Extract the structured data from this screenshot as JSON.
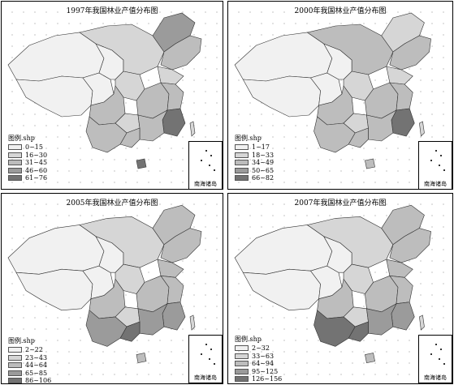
{
  "colors": {
    "c1": "#f1f1f1",
    "c2": "#d6d6d6",
    "c3": "#bdbdbd",
    "c4": "#9b9b9b",
    "c5": "#737373"
  },
  "legend_title": "图例.shp",
  "inset_caption": "南海诸岛",
  "panels": [
    {
      "title": "1997年我国林业产值分布图",
      "legend": [
        "0~15",
        "16~30",
        "31~45",
        "46~60",
        "61~76"
      ],
      "fills": {
        "ne": 3,
        "neh": 4,
        "nw": 1,
        "tibet": 1,
        "qinghai": 1,
        "gansu": 1,
        "nchina": 2,
        "shaanxi": 2,
        "sichuan": 3,
        "central": 3,
        "east": 3,
        "fujian": 5,
        "south": 3,
        "guangxi": 3,
        "yunnan": 3,
        "guizhou": 2,
        "hainan": 5,
        "shandong": 2,
        "taiwan": 2
      }
    },
    {
      "title": "2000年我国林业产值分布图",
      "legend": [
        "1~17",
        "18~33",
        "34~49",
        "50~65",
        "66~82"
      ],
      "fills": {
        "ne": 3,
        "neh": 2,
        "nw": 1,
        "tibet": 1,
        "qinghai": 1,
        "gansu": 1,
        "nchina": 3,
        "shaanxi": 2,
        "sichuan": 3,
        "central": 3,
        "east": 3,
        "fujian": 5,
        "south": 3,
        "guangxi": 3,
        "yunnan": 3,
        "guizhou": 2,
        "hainan": 3,
        "shandong": 2,
        "taiwan": 2
      }
    },
    {
      "title": "2005年我国林业产值分布图",
      "legend": [
        "2~22",
        "23~43",
        "44~64",
        "65~85",
        "86~106"
      ],
      "fills": {
        "ne": 3,
        "neh": 3,
        "nw": 1,
        "tibet": 1,
        "qinghai": 1,
        "gansu": 1,
        "nchina": 2,
        "shaanxi": 2,
        "sichuan": 3,
        "central": 3,
        "east": 3,
        "fujian": 4,
        "south": 4,
        "guangxi": 5,
        "yunnan": 4,
        "guizhou": 2,
        "hainan": 3,
        "shandong": 3,
        "taiwan": 2
      }
    },
    {
      "title": "2007年我国林业产值分布图",
      "legend": [
        "2~32",
        "33~63",
        "64~94",
        "95~125",
        "126~156"
      ],
      "fills": {
        "ne": 3,
        "neh": 3,
        "nw": 1,
        "tibet": 1,
        "qinghai": 1,
        "gansu": 1,
        "nchina": 2,
        "shaanxi": 2,
        "sichuan": 3,
        "central": 3,
        "east": 3,
        "fujian": 4,
        "south": 4,
        "guangxi": 5,
        "yunnan": 5,
        "guizhou": 2,
        "hainan": 3,
        "shandong": 3,
        "taiwan": 2
      }
    }
  ]
}
